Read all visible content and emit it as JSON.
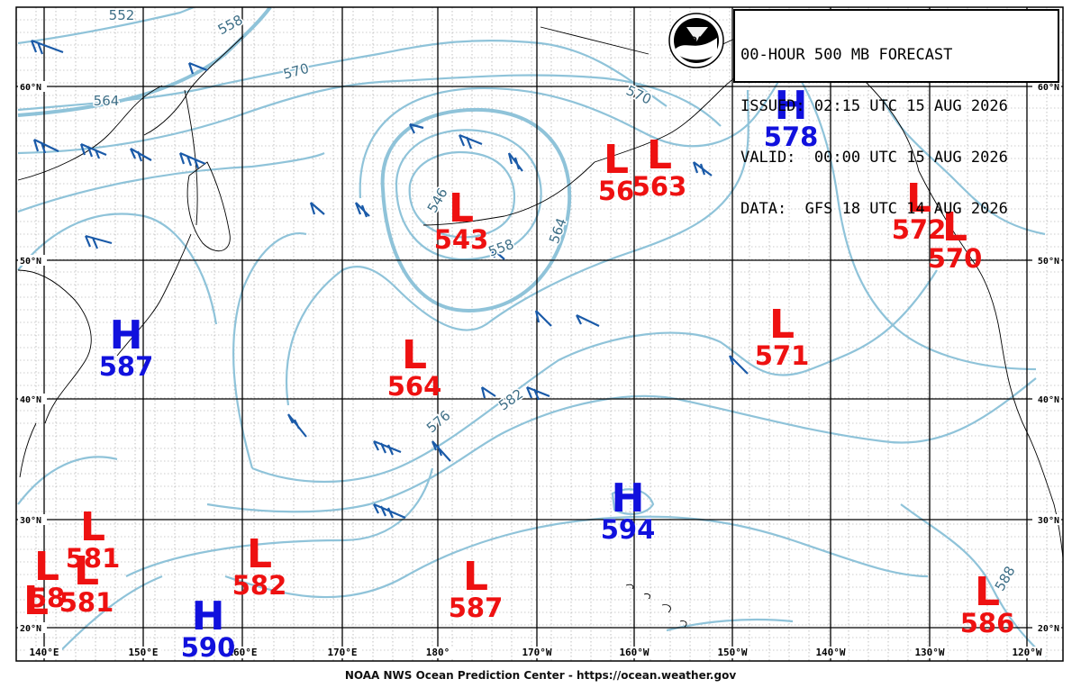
{
  "title_box": {
    "line1": "00-HOUR 500 MB FORECAST",
    "line2": "ISSUED: 02:15 UTC 15 AUG 2026",
    "line3": "VALID:  00:00 UTC 15 AUG 2026",
    "line4": "DATA:  GFS 18 UTC 14 AUG 2026"
  },
  "logo_text": "NOAA",
  "footer": "NOAA NWS Ocean Prediction Center - https://ocean.weather.gov",
  "lat_labels": [
    "60°N",
    "50°N",
    "40°N",
    "30°N",
    "20°N"
  ],
  "lon_labels": [
    "140°E",
    "150°E",
    "160°E",
    "170°E",
    "180°",
    "170°W",
    "160°W",
    "150°W",
    "140°W",
    "130°W",
    "120°W"
  ],
  "colors": {
    "low": "#ee1111",
    "high": "#1111dd",
    "contour": "#8fc3d9",
    "barb": "#1a5aa8",
    "grid": "#000000",
    "minor_grid": "#9a9a9a"
  },
  "pressure_centers": [
    {
      "type": "L",
      "value": "543"
    },
    {
      "type": "L",
      "value": "56"
    },
    {
      "type": "L",
      "value": "563"
    },
    {
      "type": "L",
      "value": "572"
    },
    {
      "type": "L",
      "value": "570"
    },
    {
      "type": "L",
      "value": "571"
    },
    {
      "type": "L",
      "value": "564"
    },
    {
      "type": "L",
      "value": "581"
    },
    {
      "type": "L",
      "value": "581"
    },
    {
      "type": "L",
      "value": "58"
    },
    {
      "type": "L",
      "value": "582"
    },
    {
      "type": "L",
      "value": "587"
    },
    {
      "type": "L",
      "value": "586"
    },
    {
      "type": "L",
      "value": ""
    },
    {
      "type": "H",
      "value": "578"
    },
    {
      "type": "H",
      "value": "587"
    },
    {
      "type": "H",
      "value": "594"
    },
    {
      "type": "H",
      "value": "590"
    }
  ],
  "contour_labels": [
    "552",
    "558",
    "564",
    "570",
    "570",
    "546",
    "558",
    "564",
    "576",
    "582",
    "588"
  ]
}
